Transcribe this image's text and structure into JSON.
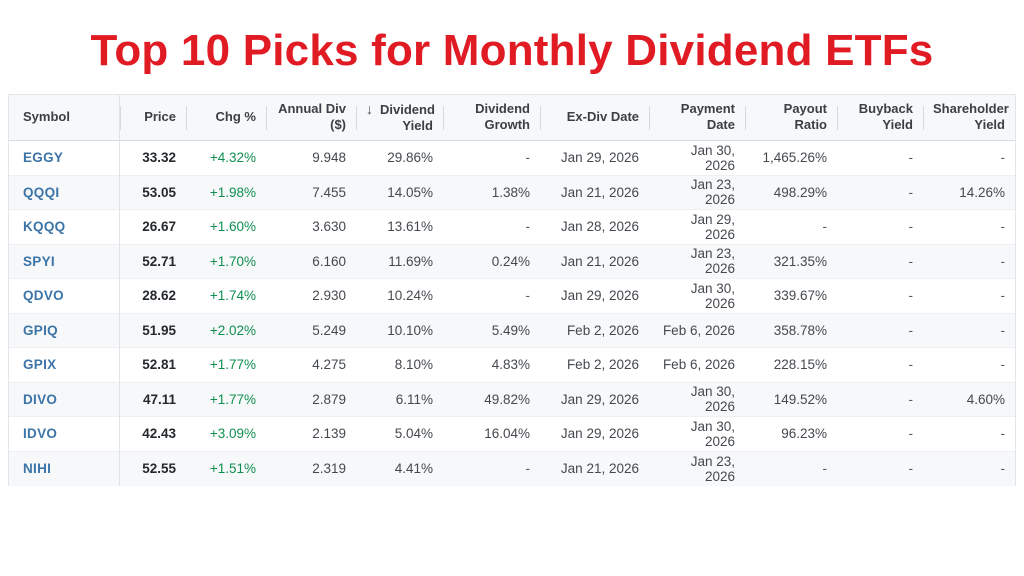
{
  "title": "Top 10 Picks for Monthly Dividend ETFs",
  "icons": {
    "sort_descending": "↓"
  },
  "colors": {
    "title_red": "#e11b23",
    "symbol_blue": "#3d74a8",
    "positive_green": "#0f8f4f",
    "header_bg": "#f7f8f9",
    "alt_row_bg": "#f6f8fa"
  },
  "table": {
    "columns": [
      {
        "id": "symbol",
        "label": "Symbol"
      },
      {
        "id": "price",
        "label": "Price"
      },
      {
        "id": "chg",
        "label": "Chg %"
      },
      {
        "id": "annual_div",
        "label": "Annual Div\n($)"
      },
      {
        "id": "dividend_yield",
        "label": "Dividend\nYield",
        "sorted": "desc"
      },
      {
        "id": "dividend_growth",
        "label": "Dividend\nGrowth"
      },
      {
        "id": "ex_div_date",
        "label": "Ex-Div Date"
      },
      {
        "id": "payment_date",
        "label": "Payment Date"
      },
      {
        "id": "payout_ratio",
        "label": "Payout Ratio"
      },
      {
        "id": "buyback_yield",
        "label": "Buyback Yield"
      },
      {
        "id": "shareholder_yield",
        "label": "Shareholder\nYield"
      }
    ],
    "rows": [
      {
        "symbol": "EGGY",
        "price": "33.32",
        "chg": "+4.32%",
        "annual_div": "9.948",
        "dividend_yield": "29.86%",
        "dividend_growth": "-",
        "ex_div_date": "Jan 29, 2026",
        "payment_date": "Jan 30, 2026",
        "payout_ratio": "1,465.26%",
        "buyback_yield": "-",
        "shareholder_yield": "-"
      },
      {
        "symbol": "QQQI",
        "price": "53.05",
        "chg": "+1.98%",
        "annual_div": "7.455",
        "dividend_yield": "14.05%",
        "dividend_growth": "1.38%",
        "ex_div_date": "Jan 21, 2026",
        "payment_date": "Jan 23, 2026",
        "payout_ratio": "498.29%",
        "buyback_yield": "-",
        "shareholder_yield": "14.26%"
      },
      {
        "symbol": "KQQQ",
        "price": "26.67",
        "chg": "+1.60%",
        "annual_div": "3.630",
        "dividend_yield": "13.61%",
        "dividend_growth": "-",
        "ex_div_date": "Jan 28, 2026",
        "payment_date": "Jan 29, 2026",
        "payout_ratio": "-",
        "buyback_yield": "-",
        "shareholder_yield": "-"
      },
      {
        "symbol": "SPYI",
        "price": "52.71",
        "chg": "+1.70%",
        "annual_div": "6.160",
        "dividend_yield": "11.69%",
        "dividend_growth": "0.24%",
        "ex_div_date": "Jan 21, 2026",
        "payment_date": "Jan 23, 2026",
        "payout_ratio": "321.35%",
        "buyback_yield": "-",
        "shareholder_yield": "-"
      },
      {
        "symbol": "QDVO",
        "price": "28.62",
        "chg": "+1.74%",
        "annual_div": "2.930",
        "dividend_yield": "10.24%",
        "dividend_growth": "-",
        "ex_div_date": "Jan 29, 2026",
        "payment_date": "Jan 30, 2026",
        "payout_ratio": "339.67%",
        "buyback_yield": "-",
        "shareholder_yield": "-"
      },
      {
        "symbol": "GPIQ",
        "price": "51.95",
        "chg": "+2.02%",
        "annual_div": "5.249",
        "dividend_yield": "10.10%",
        "dividend_growth": "5.49%",
        "ex_div_date": "Feb 2, 2026",
        "payment_date": "Feb 6, 2026",
        "payout_ratio": "358.78%",
        "buyback_yield": "-",
        "shareholder_yield": "-"
      },
      {
        "symbol": "GPIX",
        "price": "52.81",
        "chg": "+1.77%",
        "annual_div": "4.275",
        "dividend_yield": "8.10%",
        "dividend_growth": "4.83%",
        "ex_div_date": "Feb 2, 2026",
        "payment_date": "Feb 6, 2026",
        "payout_ratio": "228.15%",
        "buyback_yield": "-",
        "shareholder_yield": "-"
      },
      {
        "symbol": "DIVO",
        "price": "47.11",
        "chg": "+1.77%",
        "annual_div": "2.879",
        "dividend_yield": "6.11%",
        "dividend_growth": "49.82%",
        "ex_div_date": "Jan 29, 2026",
        "payment_date": "Jan 30, 2026",
        "payout_ratio": "149.52%",
        "buyback_yield": "-",
        "shareholder_yield": "4.60%"
      },
      {
        "symbol": "IDVO",
        "price": "42.43",
        "chg": "+3.09%",
        "annual_div": "2.139",
        "dividend_yield": "5.04%",
        "dividend_growth": "16.04%",
        "ex_div_date": "Jan 29, 2026",
        "payment_date": "Jan 30, 2026",
        "payout_ratio": "96.23%",
        "buyback_yield": "-",
        "shareholder_yield": "-"
      },
      {
        "symbol": "NIHI",
        "price": "52.55",
        "chg": "+1.51%",
        "annual_div": "2.319",
        "dividend_yield": "4.41%",
        "dividend_growth": "-",
        "ex_div_date": "Jan 21, 2026",
        "payment_date": "Jan 23, 2026",
        "payout_ratio": "-",
        "buyback_yield": "-",
        "shareholder_yield": "-"
      }
    ]
  }
}
